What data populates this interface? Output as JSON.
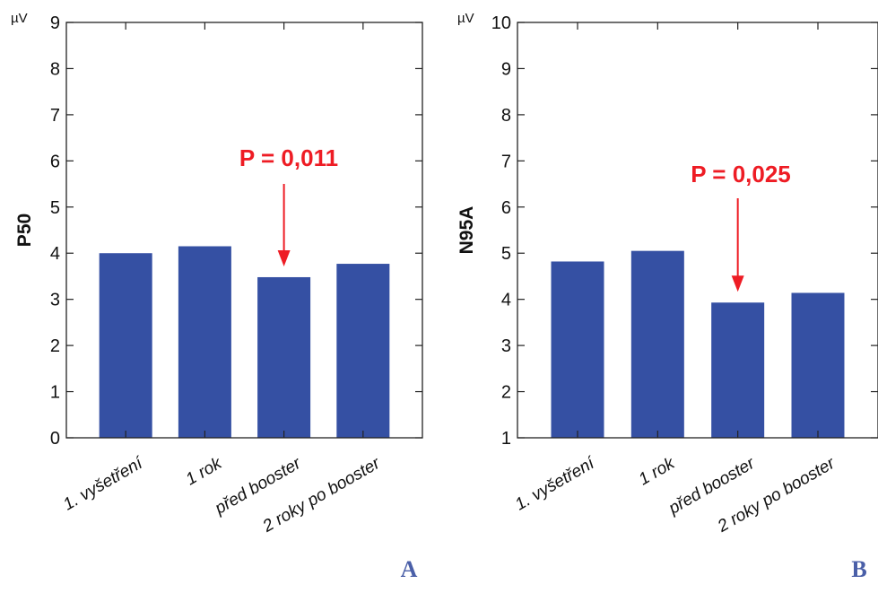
{
  "chart_data": [
    {
      "type": "bar",
      "panel_label": "A",
      "unit": "µV",
      "ylabel": "P50",
      "categories": [
        "1. vyšetření",
        "1 rok",
        "před booster",
        "2 roky po booster"
      ],
      "values": [
        4.0,
        4.15,
        3.48,
        3.77
      ],
      "ylim": [
        0,
        9
      ],
      "yticks": [
        "0",
        "1",
        "2",
        "3",
        "4",
        "5",
        "6",
        "7",
        "8",
        "9"
      ],
      "annotation": {
        "text": "P = 0,011",
        "target_category": "před booster"
      },
      "colors": {
        "bar": "#3550a3",
        "annotation": "#ee1c24",
        "panel_label": "#4a5fa8"
      }
    },
    {
      "type": "bar",
      "panel_label": "B",
      "unit": "µV",
      "ylabel": "N95A",
      "categories": [
        "1. vyšetření",
        "1 rok",
        "před booster",
        "2 roky po booster"
      ],
      "values": [
        4.82,
        5.05,
        3.93,
        4.14
      ],
      "ylim": [
        1,
        10
      ],
      "yticks": [
        "1",
        "2",
        "3",
        "4",
        "5",
        "6",
        "7",
        "8",
        "9",
        "10"
      ],
      "annotation": {
        "text": "P = 0,025",
        "target_category": "před booster"
      },
      "colors": {
        "bar": "#3550a3",
        "annotation": "#ee1c24",
        "panel_label": "#4a5fa8"
      }
    }
  ]
}
